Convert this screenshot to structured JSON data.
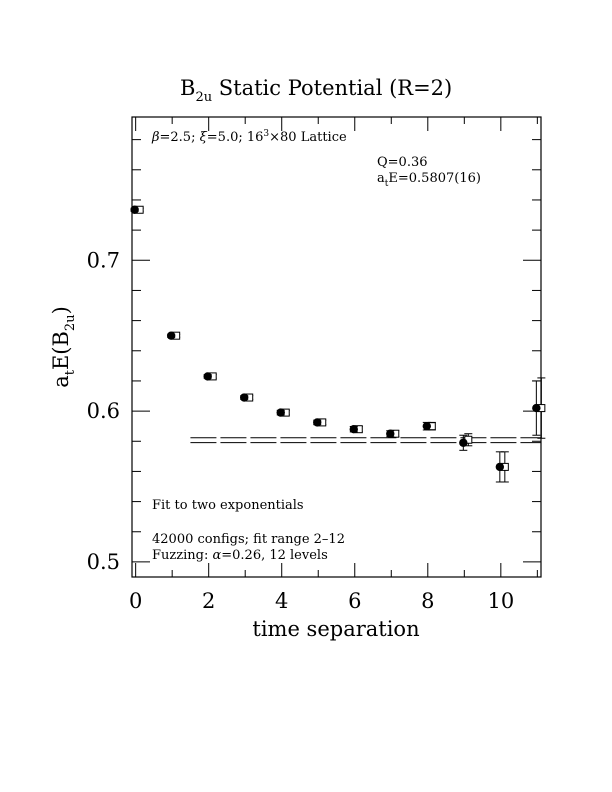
{
  "chart_data": {
    "type": "scatter",
    "title": "B_2u Static Potential (R=2)",
    "title_main": "B",
    "title_sub": "2u",
    "title_rest": " Static Potential (R=2)",
    "xlabel": "time separation",
    "ylabel": "a_t E(B_2u)",
    "ylabel_a": "a",
    "ylabel_t": "t",
    "ylabel_E": "E(B",
    "ylabel_sub": "2u",
    "ylabel_close": ")",
    "xlim": [
      -0.1,
      11.1
    ],
    "ylim": [
      0.49,
      0.795
    ],
    "x_ticks": [
      {
        "value": 0,
        "label": "0"
      },
      {
        "value": 2,
        "label": "2"
      },
      {
        "value": 4,
        "label": "4"
      },
      {
        "value": 6,
        "label": "6"
      },
      {
        "value": 8,
        "label": "8"
      },
      {
        "value": 10,
        "label": "10"
      }
    ],
    "y_ticks": [
      {
        "value": 0.5,
        "label": "0.5"
      },
      {
        "value": 0.6,
        "label": "0.6"
      },
      {
        "value": 0.7,
        "label": "0.7"
      }
    ],
    "series": [
      {
        "marker": "filled-circle",
        "points": [
          {
            "x": 0,
            "y": 0.7335,
            "err": 0.001
          },
          {
            "x": 1,
            "y": 0.65,
            "err": 0.001
          },
          {
            "x": 2,
            "y": 0.623,
            "err": 0.0012
          },
          {
            "x": 3,
            "y": 0.609,
            "err": 0.0012
          },
          {
            "x": 4,
            "y": 0.599,
            "err": 0.0015
          },
          {
            "x": 5,
            "y": 0.5925,
            "err": 0.0015
          },
          {
            "x": 6,
            "y": 0.588,
            "err": 0.0018
          },
          {
            "x": 7,
            "y": 0.585,
            "err": 0.002
          },
          {
            "x": 8,
            "y": 0.59,
            "err": 0.0025
          },
          {
            "x": 9,
            "y": 0.579,
            "err": 0.005
          },
          {
            "x": 10,
            "y": 0.563,
            "err": 0.01
          },
          {
            "x": 11,
            "y": 0.602,
            "err": 0.018
          }
        ]
      },
      {
        "marker": "open-square",
        "points": [
          {
            "x": 0,
            "y": 0.7335,
            "err": 0.001
          },
          {
            "x": 1,
            "y": 0.65,
            "err": 0.001
          },
          {
            "x": 2,
            "y": 0.623,
            "err": 0.0012
          },
          {
            "x": 3,
            "y": 0.609,
            "err": 0.0012
          },
          {
            "x": 4,
            "y": 0.599,
            "err": 0.0015
          },
          {
            "x": 5,
            "y": 0.5925,
            "err": 0.0015
          },
          {
            "x": 6,
            "y": 0.588,
            "err": 0.0018
          },
          {
            "x": 7,
            "y": 0.585,
            "err": 0.002
          },
          {
            "x": 8,
            "y": 0.59,
            "err": 0.0025
          },
          {
            "x": 9,
            "y": 0.581,
            "err": 0.004
          },
          {
            "x": 10,
            "y": 0.563,
            "err": 0.01
          },
          {
            "x": 11,
            "y": 0.602,
            "err": 0.02
          }
        ]
      }
    ],
    "fit": {
      "value": 0.5807,
      "error": 0.0016,
      "x_start": 1.5,
      "x_end": 11.1
    },
    "annotations": {
      "lattice_beta": "β",
      "lattice_mid": "=2.5; ",
      "lattice_xi": "ξ",
      "lattice_rest": "=5.0; 16",
      "lattice_sup": "3",
      "lattice_end": "×80 Lattice",
      "q_value": "Q=0.36",
      "energy_a": "a",
      "energy_t": "t",
      "energy_rest": "E=0.5807(16)",
      "fit_text": "Fit to two exponentials",
      "configs_text": "42000 configs; fit range 2–12",
      "fuzzing_prefix": "Fuzzing: ",
      "fuzzing_alpha": "α",
      "fuzzing_rest": "=0.26, 12 levels"
    },
    "grid": false,
    "legend": "none"
  }
}
